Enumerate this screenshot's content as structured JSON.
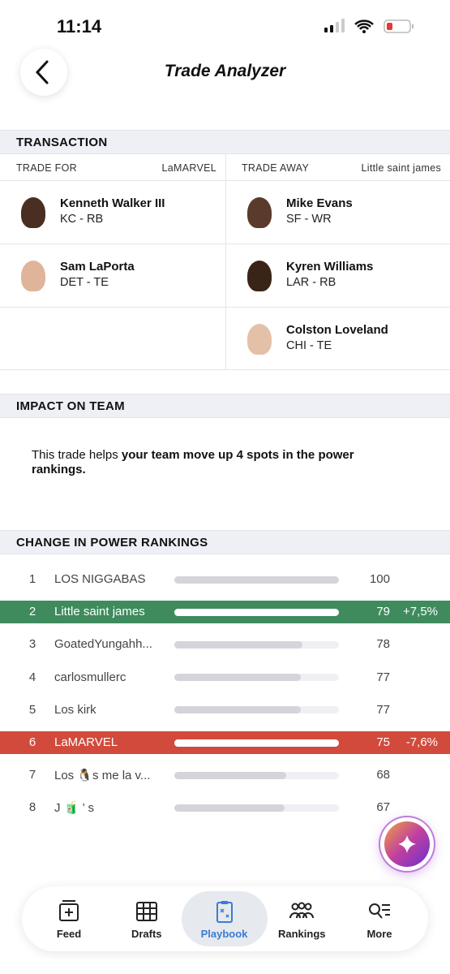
{
  "status_bar": {
    "time": "11:14"
  },
  "header": {
    "title": "Trade Analyzer"
  },
  "transaction": {
    "title": "TRANSACTION",
    "trade_for": {
      "label": "TRADE FOR",
      "team": "LaMARVEL",
      "players": [
        {
          "name": "Kenneth Walker III",
          "detail": "KC - RB"
        },
        {
          "name": "Sam LaPorta",
          "detail": "DET - TE"
        }
      ]
    },
    "trade_away": {
      "label": "TRADE AWAY",
      "team": "Little saint james",
      "players": [
        {
          "name": "Mike Evans",
          "detail": "SF - WR"
        },
        {
          "name": "Kyren Williams",
          "detail": "LAR - RB"
        },
        {
          "name": "Colston Loveland",
          "detail": "CHI - TE"
        }
      ]
    }
  },
  "impact": {
    "title": "IMPACT ON TEAM",
    "text": "This trade helps ",
    "text_bold": "your team move up 4 spots in the power rankings."
  },
  "rankings": {
    "title": "CHANGE IN POWER RANKINGS",
    "rows": [
      {
        "rank": 1,
        "team": "LOS NIGGABAS",
        "score": 100
      },
      {
        "rank": 2,
        "team": "Little saint james",
        "score": 79,
        "change": "+7,5%",
        "highlight_color": "#3f8b5e"
      },
      {
        "rank": 3,
        "team": "GoatedYungahh...",
        "score": 78
      },
      {
        "rank": 4,
        "team": "carlosmullerc",
        "score": 77
      },
      {
        "rank": 5,
        "team": "Los kirk",
        "score": 77
      },
      {
        "rank": 6,
        "team": "LaMARVEL",
        "score": 75,
        "change": "-7,6%",
        "highlight_color": "#d24a3c"
      },
      {
        "rank": 7,
        "team": "Los 🐧s me la v...",
        "score": 68
      },
      {
        "rank": 8,
        "team": "J 🧃 ’ s",
        "score": 67
      }
    ]
  },
  "nav": {
    "items": [
      {
        "label": "Feed"
      },
      {
        "label": "Drafts"
      },
      {
        "label": "Playbook",
        "active": true
      },
      {
        "label": "Rankings"
      },
      {
        "label": "More"
      }
    ]
  }
}
